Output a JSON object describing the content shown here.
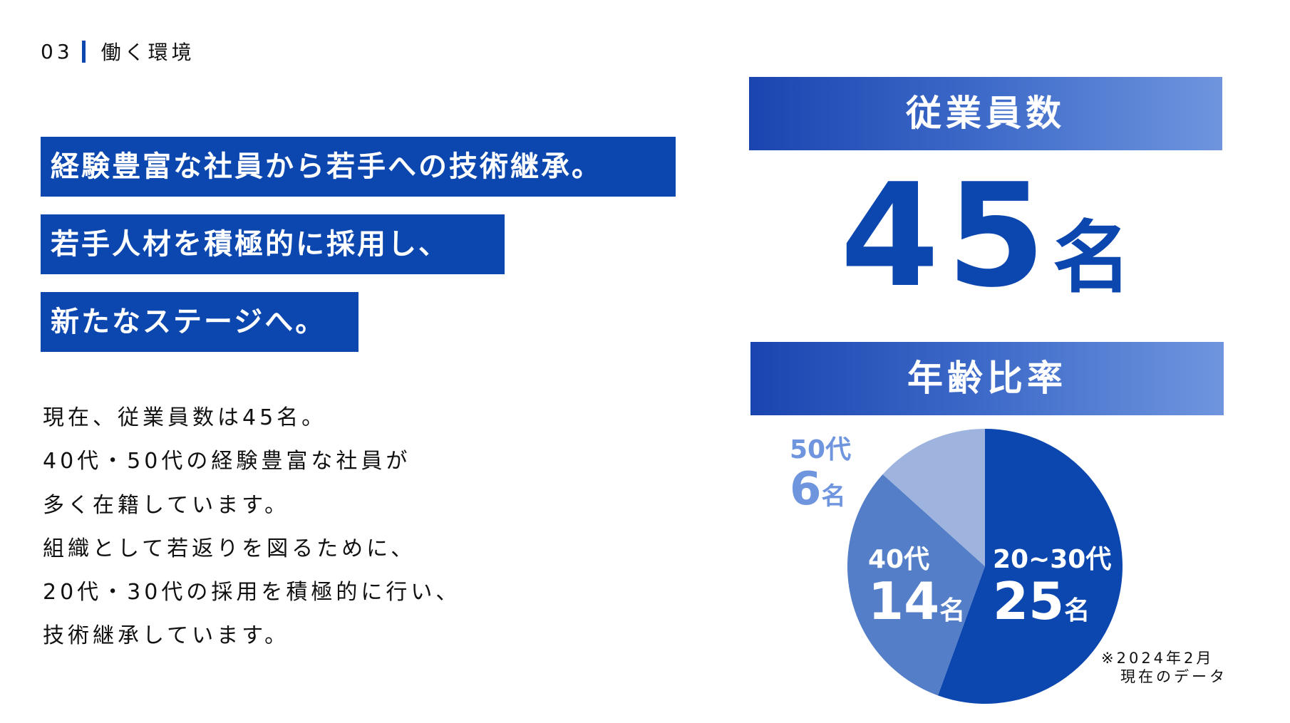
{
  "section": {
    "number": "03",
    "title": "働く環境"
  },
  "headlines": [
    "経験豊富な社員から若手への技術継承。",
    "若手人材を積極的に採用し、",
    "新たなステージへ。"
  ],
  "body_lines": [
    "現在、従業員数は45名。",
    "40代・50代の経験豊富な社員が",
    "多く在籍しています。",
    "組織として若返りを図るために、",
    "20代・30代の採用を積極的に行い、",
    "技術継承しています。"
  ],
  "employees": {
    "title": "従業員数",
    "count": "45",
    "unit": "名"
  },
  "age_ratio": {
    "title": "年齢比率",
    "note_line1": "※2024年2月",
    "note_line2": "現在のデータ"
  },
  "colors": {
    "primary": "#0c47b0",
    "mid": "#547ec8",
    "light": "#9eb4de",
    "label_light": "#6f95de"
  },
  "chart_data": {
    "type": "pie",
    "categories": [
      "20~30代",
      "40代",
      "50代"
    ],
    "values": [
      25,
      14,
      6
    ],
    "value_labels": [
      "25",
      "14",
      "6"
    ],
    "unit": "名",
    "colors": [
      "#0c47b0",
      "#547ec8",
      "#9eb4de"
    ]
  }
}
